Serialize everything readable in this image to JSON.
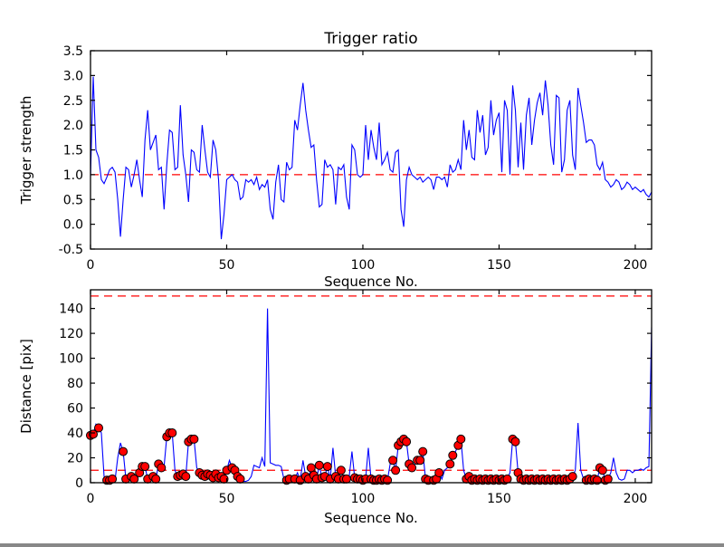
{
  "figure": {
    "background": "#ffffff",
    "axis_color": "#000000",
    "text_color": "#000000"
  },
  "chart_data": [
    {
      "id": "trigger-ratio",
      "type": "line",
      "title": "Trigger ratio",
      "xlabel": "Sequence No.",
      "ylabel": "Trigger strength",
      "xlim": [
        0,
        206
      ],
      "ylim": [
        -0.5,
        3.5
      ],
      "xticks": [
        0,
        50,
        100,
        150,
        200
      ],
      "yticks": [
        -0.5,
        0.0,
        0.5,
        1.0,
        1.5,
        2.0,
        2.5,
        3.0,
        3.5
      ],
      "ytick_decimals": 1,
      "grid": false,
      "legend": null,
      "threshold_lines": [
        {
          "y": 1.0,
          "style": "dashed",
          "color": "#ff0000"
        }
      ],
      "series": [
        {
          "name": "trigger-strength",
          "color": "#0000ff",
          "values": [
            0.95,
            2.98,
            1.5,
            1.35,
            0.9,
            0.82,
            0.95,
            1.1,
            1.15,
            1.05,
            0.5,
            -0.25,
            0.5,
            1.15,
            1.1,
            0.75,
            1.0,
            1.3,
            0.9,
            0.55,
            1.7,
            2.3,
            1.5,
            1.65,
            1.8,
            1.1,
            1.15,
            0.3,
            1.2,
            1.9,
            1.85,
            1.1,
            1.15,
            2.4,
            1.4,
            1.0,
            0.45,
            1.5,
            1.45,
            1.1,
            1.05,
            2.0,
            1.5,
            1.05,
            0.95,
            1.7,
            1.5,
            0.9,
            -0.3,
            0.2,
            0.9,
            0.95,
            1.0,
            0.9,
            0.85,
            0.5,
            0.55,
            0.9,
            0.85,
            0.9,
            0.8,
            0.95,
            0.7,
            0.8,
            0.75,
            0.9,
            0.3,
            0.1,
            0.85,
            1.2,
            0.5,
            0.45,
            1.25,
            1.1,
            1.15,
            2.1,
            1.9,
            2.4,
            2.85,
            2.3,
            1.9,
            1.55,
            1.6,
            0.9,
            0.35,
            0.4,
            1.3,
            1.15,
            1.2,
            1.1,
            0.4,
            1.15,
            1.1,
            1.2,
            0.55,
            0.3,
            1.6,
            1.5,
            1.0,
            0.95,
            1.0,
            2.0,
            1.3,
            1.9,
            1.55,
            1.3,
            2.05,
            1.2,
            1.3,
            1.45,
            1.1,
            1.05,
            1.45,
            1.5,
            0.3,
            -0.05,
            0.9,
            1.15,
            1.0,
            0.95,
            0.9,
            0.95,
            0.85,
            0.9,
            0.95,
            0.9,
            0.7,
            0.95,
            0.95,
            0.9,
            0.95,
            0.75,
            1.2,
            1.05,
            1.1,
            1.3,
            1.1,
            2.1,
            1.5,
            1.9,
            1.35,
            1.3,
            2.3,
            1.85,
            2.2,
            1.4,
            1.55,
            2.5,
            1.8,
            2.1,
            2.25,
            1.05,
            2.5,
            2.3,
            1.0,
            2.8,
            2.3,
            1.15,
            2.05,
            1.1,
            2.2,
            2.55,
            1.6,
            2.1,
            2.45,
            2.65,
            2.2,
            2.9,
            2.4,
            1.6,
            1.2,
            2.6,
            2.55,
            1.05,
            1.3,
            2.3,
            2.5,
            1.4,
            1.1,
            2.75,
            2.4,
            2.05,
            1.65,
            1.7,
            1.7,
            1.6,
            1.2,
            1.1,
            1.25,
            0.9,
            0.85,
            0.75,
            0.8,
            0.9,
            0.85,
            0.7,
            0.75,
            0.85,
            0.8,
            0.7,
            0.75,
            0.7,
            0.65,
            0.7,
            0.6,
            0.55,
            0.65
          ]
        }
      ]
    },
    {
      "id": "distance",
      "type": "line",
      "title": null,
      "xlabel": "Sequence No.",
      "ylabel": "Distance [pix]",
      "xlim": [
        0,
        206
      ],
      "ylim": [
        0,
        155
      ],
      "xticks": [
        0,
        50,
        100,
        150,
        200
      ],
      "yticks": [
        0,
        20,
        40,
        60,
        80,
        100,
        120,
        140
      ],
      "ytick_decimals": 0,
      "grid": false,
      "legend": null,
      "threshold_lines": [
        {
          "y": 150,
          "style": "dashed",
          "color": "#ff0000"
        },
        {
          "y": 10,
          "style": "dashed",
          "color": "#ff0000"
        }
      ],
      "series": [
        {
          "name": "distance",
          "color": "#0000ff",
          "values": [
            38,
            39,
            47,
            44,
            40,
            5,
            2,
            2,
            3,
            2,
            20,
            32,
            25,
            3,
            2,
            5,
            3,
            2,
            8,
            13,
            13,
            3,
            4,
            5,
            3,
            15,
            12,
            13,
            37,
            40,
            40,
            10,
            5,
            6,
            7,
            5,
            33,
            35,
            35,
            12,
            8,
            6,
            5,
            7,
            6,
            4,
            7,
            4,
            5,
            3,
            10,
            18,
            12,
            10,
            5,
            3,
            1,
            1,
            2,
            5,
            14,
            13,
            12,
            20,
            13,
            140,
            16,
            15,
            14,
            14,
            13,
            3,
            2,
            3,
            2,
            3,
            8,
            2,
            18,
            5,
            3,
            12,
            6,
            3,
            14,
            4,
            5,
            13,
            3,
            28,
            5,
            3,
            10,
            3,
            3,
            5,
            25,
            4,
            3,
            3,
            2,
            3,
            28,
            3,
            2,
            2,
            3,
            2,
            3,
            2,
            15,
            18,
            10,
            30,
            33,
            35,
            33,
            15,
            12,
            15,
            18,
            18,
            25,
            3,
            2,
            3,
            2,
            3,
            8,
            3,
            10,
            12,
            15,
            22,
            25,
            30,
            35,
            10,
            3,
            5,
            2,
            3,
            2,
            3,
            2,
            3,
            2,
            3,
            2,
            3,
            2,
            3,
            2,
            3,
            8,
            35,
            33,
            8,
            3,
            2,
            3,
            2,
            3,
            2,
            3,
            2,
            3,
            2,
            3,
            2,
            3,
            2,
            3,
            2,
            3,
            2,
            3,
            5,
            10,
            48,
            10,
            3,
            2,
            3,
            2,
            3,
            2,
            12,
            10,
            2,
            3,
            8,
            20,
            8,
            3,
            2,
            3,
            10,
            10,
            8,
            10,
            10,
            11,
            10,
            12,
            13,
            125
          ]
        }
      ],
      "markers": {
        "shape": "circle",
        "face_color": "#ff0000",
        "edge_color": "#000000",
        "indices": [
          0,
          1,
          3,
          6,
          7,
          8,
          12,
          13,
          15,
          16,
          18,
          19,
          20,
          21,
          23,
          24,
          25,
          26,
          28,
          29,
          30,
          32,
          33,
          34,
          35,
          36,
          37,
          38,
          40,
          41,
          42,
          43,
          44,
          45,
          46,
          47,
          48,
          49,
          50,
          52,
          53,
          54,
          55,
          72,
          73,
          75,
          77,
          79,
          80,
          81,
          82,
          83,
          84,
          85,
          86,
          87,
          88,
          90,
          91,
          92,
          93,
          94,
          97,
          98,
          99,
          100,
          101,
          103,
          104,
          105,
          106,
          107,
          108,
          109,
          111,
          112,
          113,
          114,
          115,
          116,
          117,
          118,
          120,
          121,
          122,
          123,
          124,
          126,
          127,
          128,
          132,
          133,
          135,
          136,
          138,
          139,
          140,
          141,
          142,
          143,
          144,
          145,
          146,
          147,
          148,
          149,
          150,
          151,
          152,
          153,
          155,
          156,
          157,
          158,
          159,
          160,
          161,
          162,
          163,
          164,
          165,
          166,
          167,
          168,
          169,
          170,
          171,
          172,
          173,
          174,
          175,
          176,
          177,
          182,
          183,
          184,
          185,
          186,
          187,
          188,
          189,
          190
        ]
      }
    }
  ]
}
